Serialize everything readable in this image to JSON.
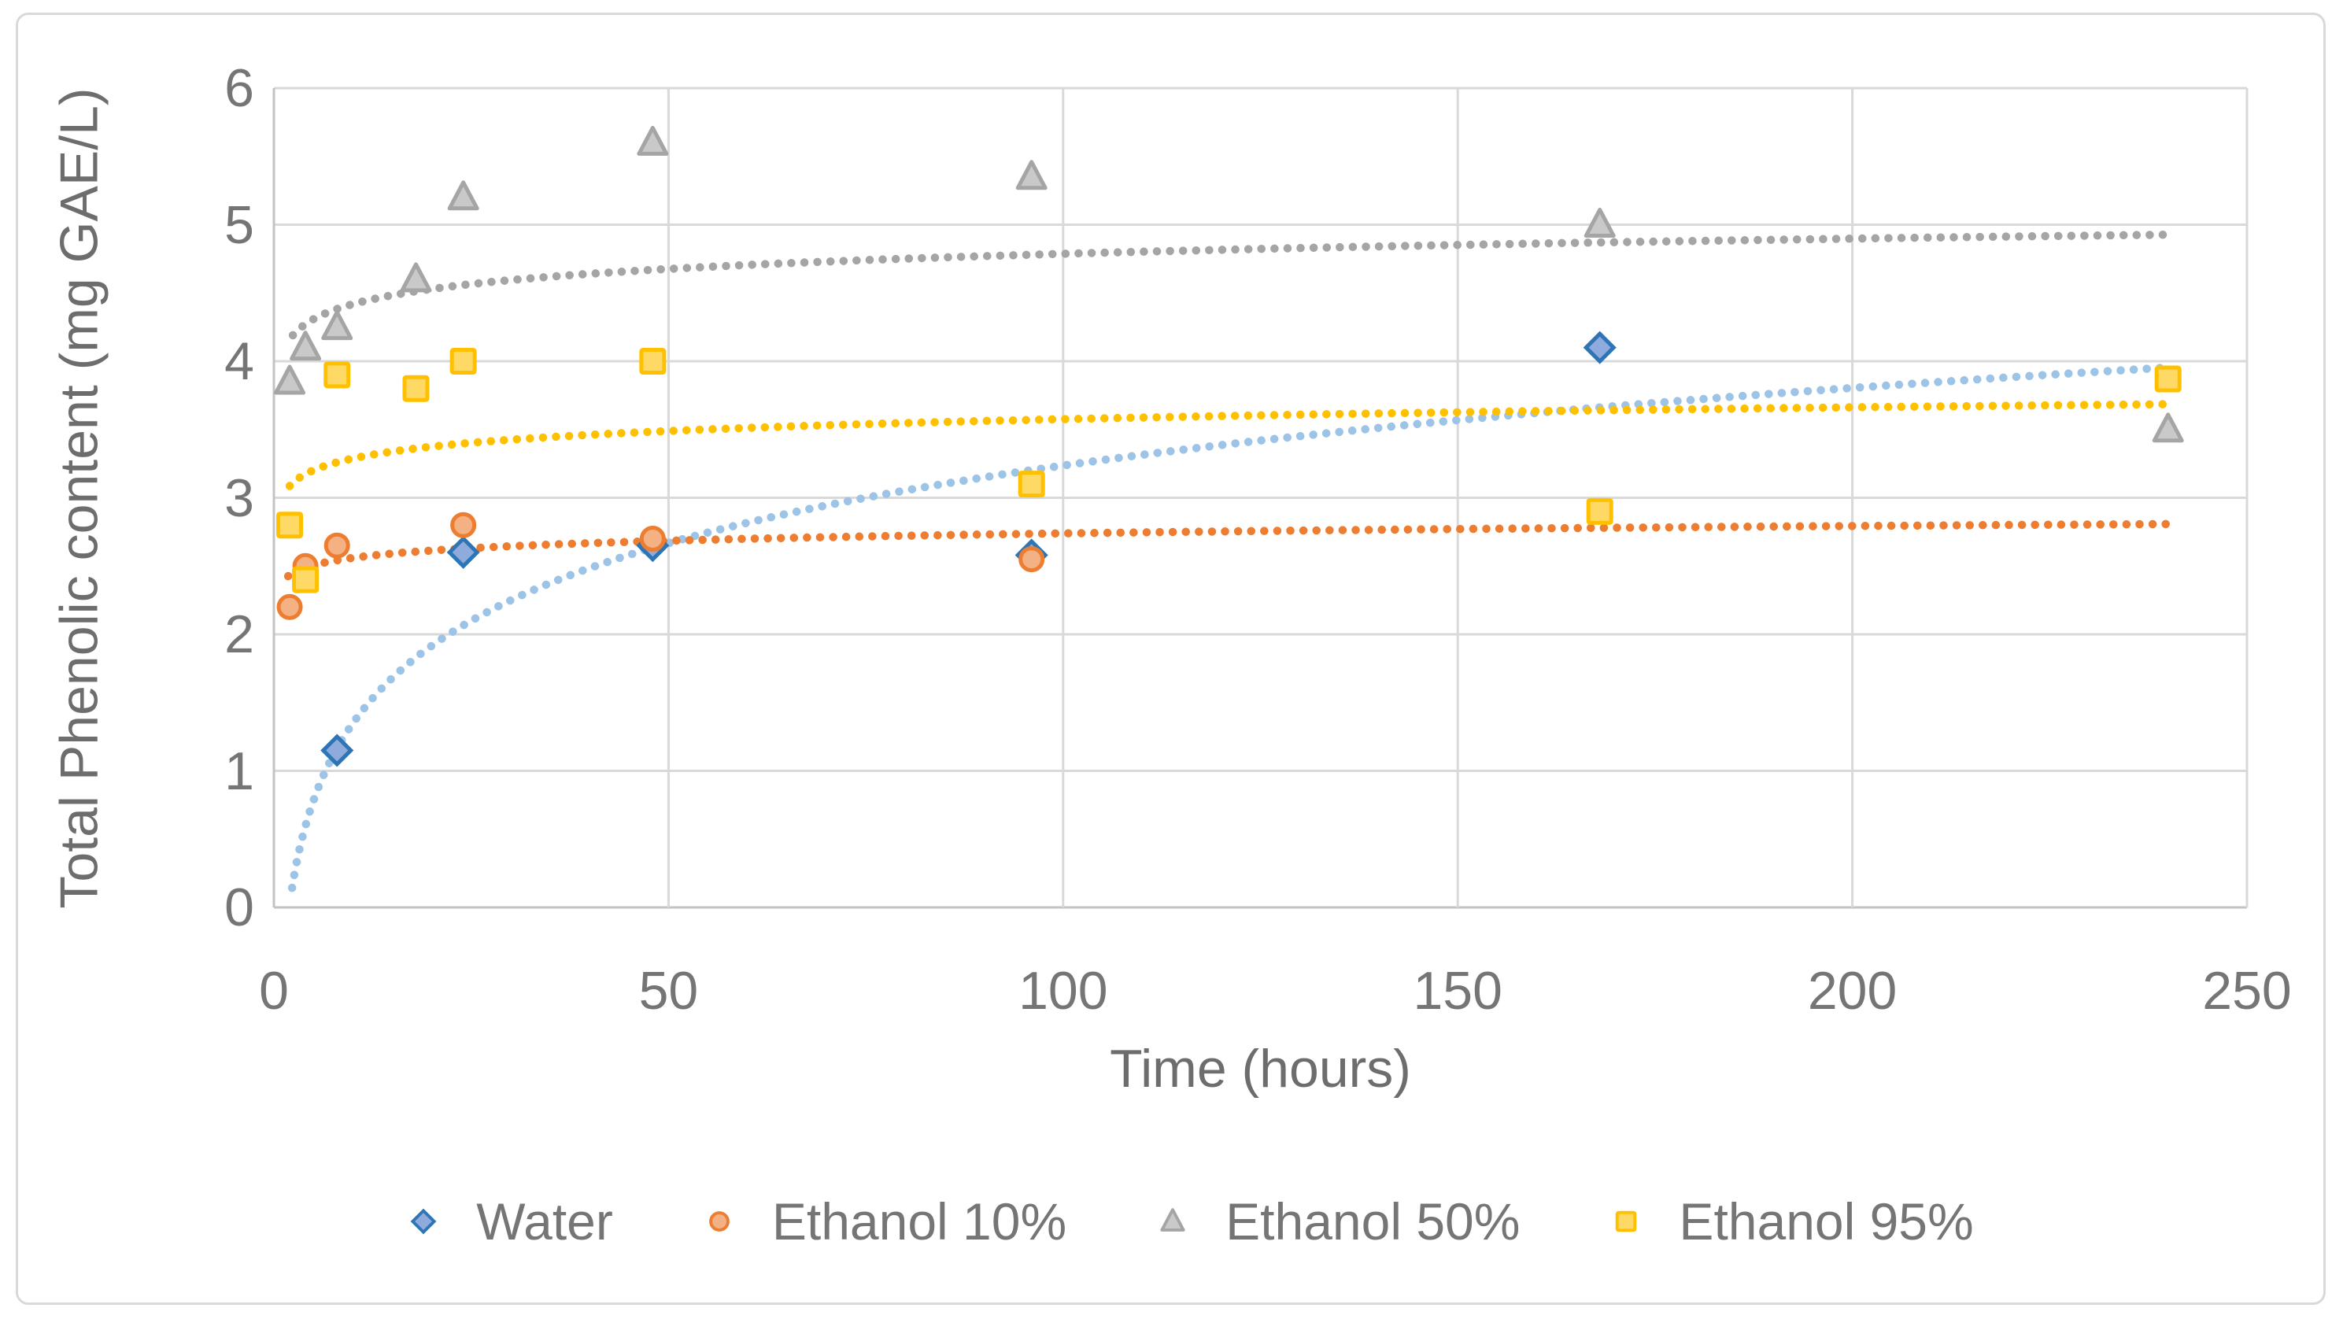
{
  "chart_data": {
    "type": "scatter",
    "xlabel": "Time (hours)",
    "ylabel": "Total Phenolic content (mg GAE/L)",
    "xlim": [
      0,
      250
    ],
    "ylim": [
      0,
      6
    ],
    "xticks": [
      0,
      50,
      100,
      150,
      200,
      250
    ],
    "yticks": [
      0,
      1,
      2,
      3,
      4,
      5,
      6
    ],
    "grid": true,
    "legend_position": "bottom",
    "grid_color": "#d9d9d9",
    "axis_line_color": "#c3c3c3",
    "text_color": "#757575",
    "series": [
      {
        "name": "Water",
        "marker": "diamond",
        "stroke": "#2E75B6",
        "fill": "#8FAADC",
        "points": [
          [
            8,
            1.15
          ],
          [
            24,
            2.6
          ],
          [
            48,
            2.65
          ],
          [
            96,
            2.58
          ],
          [
            168,
            4.1
          ]
        ],
        "trendline": {
          "type": "logarithmic",
          "intercept": -0.54,
          "slope": 0.82,
          "t_start": 2.3,
          "t_end": 240,
          "color": "#9DC3E6"
        }
      },
      {
        "name": "Ethanol 10%",
        "marker": "circle",
        "stroke": "#ED7D31",
        "fill": "#F4B183",
        "points": [
          [
            2,
            2.2
          ],
          [
            4,
            2.5
          ],
          [
            8,
            2.65
          ],
          [
            24,
            2.8
          ],
          [
            48,
            2.7
          ],
          [
            96,
            2.55
          ]
        ],
        "trendline": {
          "type": "logarithmic",
          "intercept": 2.38,
          "slope": 0.078,
          "t_start": 1.8,
          "t_end": 240,
          "color": "#ED7D31"
        }
      },
      {
        "name": "Ethanol 50%",
        "marker": "triangle",
        "stroke": "#A5A5A5",
        "fill": "#C9C9C9",
        "points": [
          [
            2,
            3.85
          ],
          [
            4,
            4.1
          ],
          [
            8,
            4.25
          ],
          [
            18,
            4.6
          ],
          [
            24,
            5.2
          ],
          [
            48,
            5.6
          ],
          [
            96,
            5.35
          ],
          [
            168,
            5.0
          ],
          [
            240,
            3.5
          ]
        ],
        "trendline": {
          "type": "logarithmic",
          "intercept": 4.05,
          "slope": 0.16,
          "t_start": 2.4,
          "t_end": 240,
          "color": "#A5A5A5"
        }
      },
      {
        "name": "Ethanol 95%",
        "marker": "square",
        "stroke": "#FFC000",
        "fill": "#FFD966",
        "points": [
          [
            2,
            2.8
          ],
          [
            4,
            2.4
          ],
          [
            8,
            3.9
          ],
          [
            18,
            3.8
          ],
          [
            24,
            4.0
          ],
          [
            48,
            4.0
          ],
          [
            96,
            3.1
          ],
          [
            168,
            2.9
          ],
          [
            240,
            3.87
          ]
        ],
        "trendline": {
          "type": "logarithmic",
          "intercept": 3.0,
          "slope": 0.125,
          "t_start": 2.0,
          "t_end": 240,
          "color": "#FFC000"
        }
      }
    ]
  }
}
